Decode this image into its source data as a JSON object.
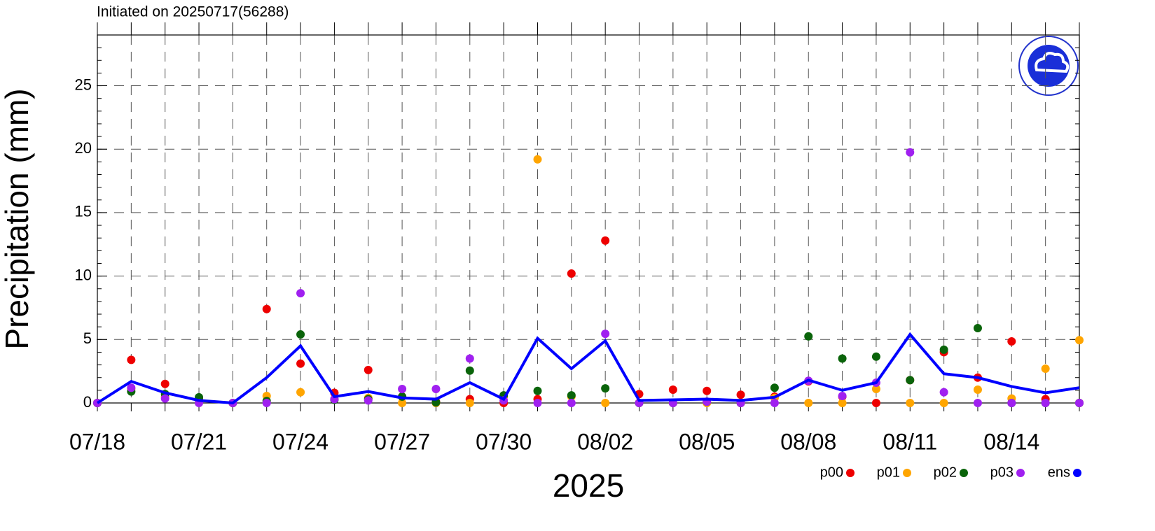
{
  "chart_data": {
    "type": "scatter-line",
    "title": "Initiated on 20250717(56288)",
    "y_label": "Precipitation (mm)",
    "x_label": "2025",
    "categories": [
      "07/18",
      null,
      null,
      "07/21",
      null,
      null,
      "07/24",
      null,
      null,
      "07/27",
      null,
      null,
      "07/30",
      null,
      null,
      "08/02",
      null,
      null,
      "08/05",
      null,
      null,
      "08/08",
      null,
      null,
      "08/11",
      null,
      null,
      "08/14",
      null,
      null
    ],
    "ylim": [
      0,
      29
    ],
    "yticks": [
      0,
      5,
      10,
      15,
      20,
      25
    ],
    "grid": true,
    "legend": "bottom-right",
    "series": [
      {
        "name": "p00",
        "color": "#ee0000",
        "mode": "markers",
        "values": [
          0,
          3.4,
          1.5,
          0.3,
          0,
          7.4,
          3.1,
          0.8,
          2.6,
          0.5,
          0.1,
          0.3,
          0,
          0.3,
          10.2,
          12.8,
          0.7,
          1.05,
          0.95,
          0.65,
          0.5,
          1.7,
          0.5,
          0,
          1.8,
          4.0,
          2.0,
          4.85,
          0.3,
          0
        ]
      },
      {
        "name": "p01",
        "color": "#ffa500",
        "mode": "markers",
        "values": [
          0,
          1.1,
          0.5,
          0.2,
          0,
          0.55,
          0.85,
          0.3,
          0.4,
          0,
          0,
          0,
          0.5,
          19.2,
          0.5,
          0,
          0,
          0,
          0,
          0,
          0.4,
          0,
          0,
          1.1,
          0,
          0,
          1.05,
          0.35,
          2.7,
          4.95
        ]
      },
      {
        "name": "p02",
        "color": "#0a640a",
        "mode": "markers",
        "values": [
          0,
          0.9,
          0.7,
          0.45,
          0,
          0.15,
          5.4,
          0.25,
          0.3,
          0.5,
          0.05,
          2.55,
          0.6,
          0.95,
          0.6,
          1.15,
          0,
          0,
          0.1,
          0,
          1.2,
          5.25,
          3.5,
          3.65,
          1.8,
          4.2,
          5.9,
          0,
          0,
          0
        ]
      },
      {
        "name": "p03",
        "color": "#a020f0",
        "mode": "markers",
        "values": [
          0,
          1.2,
          0.35,
          0,
          0,
          0,
          8.65,
          0.3,
          0.2,
          1.1,
          1.1,
          3.5,
          0.2,
          0,
          0,
          5.45,
          0,
          0,
          0.1,
          0,
          0,
          1.75,
          0.55,
          1.6,
          19.75,
          0.85,
          0,
          0,
          0,
          0
        ]
      },
      {
        "name": "ens",
        "color": "#0000ff",
        "mode": "line",
        "values": [
          0,
          1.7,
          0.8,
          0.2,
          0,
          2.0,
          4.5,
          0.5,
          0.9,
          0.4,
          0.3,
          1.6,
          0.3,
          5.1,
          2.7,
          4.9,
          0.2,
          0.25,
          0.3,
          0.2,
          0.45,
          1.8,
          1.0,
          1.6,
          5.4,
          2.3,
          2.0,
          1.3,
          0.8,
          1.2
        ]
      }
    ]
  }
}
